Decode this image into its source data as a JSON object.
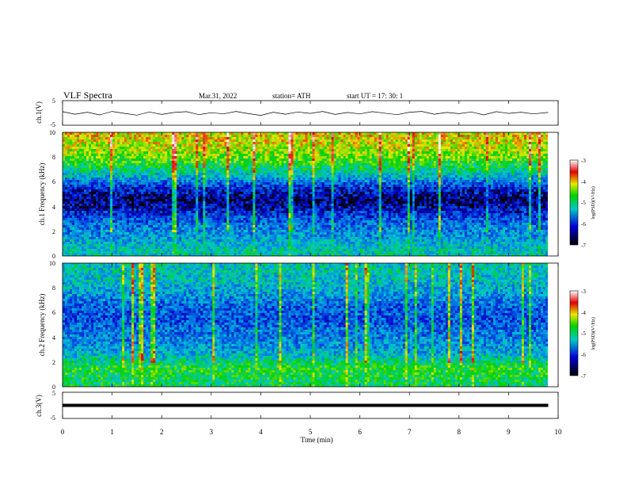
{
  "header": {
    "title": "VLF  Spectra",
    "date": "Mar.31, 2022",
    "station": "station= ATH",
    "start": "start  UT  =    17: 30: 1"
  },
  "chart_data": [
    {
      "type": "line",
      "name": "channel-1-waveform",
      "ylabel": "ch.1(V)",
      "ylim": [
        -5,
        5
      ],
      "yticks": [
        "5",
        "-5"
      ],
      "x": [
        0,
        0.25,
        0.5,
        0.75,
        1,
        1.25,
        1.5,
        1.75,
        2,
        2.25,
        2.5,
        2.75,
        3,
        3.25,
        3.5,
        3.75,
        4,
        4.25,
        4.5,
        4.75,
        5,
        5.25,
        5.5,
        5.75,
        6,
        6.25,
        6.5,
        6.75,
        7,
        7.25,
        7.5,
        7.75,
        8,
        8.25,
        8.5,
        8.75,
        9,
        9.25,
        9.5,
        9.8
      ],
      "y": [
        0.5,
        -0.5,
        0.3,
        -0.8,
        0.6,
        -0.2,
        -0.9,
        0.4,
        -0.6,
        0.2,
        0.5,
        -0.7,
        0.1,
        -0.4,
        0.6,
        -0.3,
        -1.0,
        0.3,
        -0.5,
        0.4,
        -0.2,
        0.6,
        -0.6,
        0.2,
        -0.4,
        0.5,
        -0.1,
        -0.7,
        0.3,
        0.6,
        -0.5,
        0.2,
        -0.3,
        0.4,
        -0.8,
        0.5,
        -0.2,
        0.3,
        -0.4,
        0.2
      ]
    },
    {
      "type": "heatmap",
      "name": "channel-1-spectrogram",
      "ylabel": "ch.1 Frequency (kHz)",
      "ylim": [
        0,
        10
      ],
      "yticks": [
        "0",
        "2",
        "4",
        "6",
        "8",
        "10"
      ],
      "xlim": [
        0,
        10
      ],
      "colorbar": {
        "range": [
          -7,
          -3
        ],
        "ticks": [
          "-3",
          "-4",
          "-5",
          "-6",
          "-7"
        ],
        "label": "log(PSD)(V²/Hz)"
      },
      "freq_khz": [
        0.5,
        1.5,
        2.5,
        3.5,
        4.5,
        5.5,
        6.5,
        7.5,
        8.5,
        9.5
      ],
      "log_psd_profile": [
        -5.5,
        -5.8,
        -6.0,
        -6.4,
        -6.8,
        -6.4,
        -5.6,
        -5.0,
        -4.6,
        -4.4
      ]
    },
    {
      "type": "heatmap",
      "name": "channel-2-spectrogram",
      "ylabel": "ch.2 Frequency (kHz)",
      "ylim": [
        0,
        10
      ],
      "yticks": [
        "0",
        "2",
        "4",
        "6",
        "8",
        "10"
      ],
      "xlim": [
        0,
        10
      ],
      "colorbar": {
        "range": [
          -7,
          -3
        ],
        "ticks": [
          "-3",
          "-4",
          "-5",
          "-6",
          "-7"
        ],
        "label": "log(PSD)(V²/Hz)"
      },
      "freq_khz": [
        0.5,
        1.5,
        2.5,
        3.5,
        4.5,
        5.5,
        6.5,
        7.5,
        8.5,
        9.5
      ],
      "log_psd_profile": [
        -5.2,
        -5.0,
        -5.6,
        -5.9,
        -6.0,
        -6.2,
        -6.1,
        -5.8,
        -5.6,
        -5.5
      ]
    },
    {
      "type": "line",
      "name": "channel-3-waveform",
      "ylabel": "ch.3(V)",
      "ylim": [
        -5,
        5
      ],
      "yticks": [
        "5",
        "-5"
      ],
      "x": [
        0,
        9.8
      ],
      "y": [
        0,
        0
      ]
    }
  ],
  "xaxis": {
    "label": "Time  (min)",
    "ticks": [
      "0",
      "1",
      "2",
      "3",
      "4",
      "5",
      "6",
      "7",
      "8",
      "9",
      "10"
    ],
    "range": [
      0,
      10
    ]
  },
  "colors": {
    "low": "#000000",
    "mid_low": "#0000c8",
    "mid": "#00c8c8",
    "mid_high": "#00d200",
    "high": "#e8e800",
    "peak": "#e00000",
    "top": "#ffffff"
  }
}
